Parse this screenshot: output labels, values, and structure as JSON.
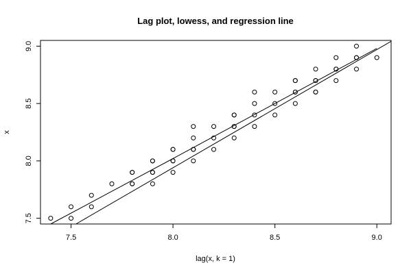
{
  "chart_data": {
    "type": "scatter",
    "title": "Lag plot, lowess, and regression line",
    "xlabel": "lag(x, k = 1)",
    "ylabel": "x",
    "xlim": [
      7.35,
      9.07
    ],
    "ylim": [
      7.45,
      9.05
    ],
    "x_ticks": [
      "7.5",
      "8.0",
      "8.5",
      "9.0"
    ],
    "y_ticks": [
      "7.5",
      "8.0",
      "8.5",
      "9.0"
    ],
    "grid": false,
    "colors": {
      "points": "#000000",
      "lines": "#000000",
      "frame": "#000000"
    },
    "points": [
      [
        7.4,
        7.5
      ],
      [
        7.5,
        7.5
      ],
      [
        7.5,
        7.6
      ],
      [
        7.6,
        7.6
      ],
      [
        7.6,
        7.7
      ],
      [
        7.7,
        7.8
      ],
      [
        7.8,
        7.8
      ],
      [
        7.8,
        7.8
      ],
      [
        7.8,
        7.9
      ],
      [
        7.8,
        7.9
      ],
      [
        7.9,
        7.8
      ],
      [
        7.9,
        7.9
      ],
      [
        7.9,
        7.9
      ],
      [
        7.9,
        8.0
      ],
      [
        7.9,
        8.0
      ],
      [
        8.0,
        7.9
      ],
      [
        8.0,
        8.0
      ],
      [
        8.0,
        8.0
      ],
      [
        8.0,
        8.1
      ],
      [
        8.0,
        8.1
      ],
      [
        8.1,
        8.0
      ],
      [
        8.1,
        8.1
      ],
      [
        8.1,
        8.1
      ],
      [
        8.1,
        8.2
      ],
      [
        8.1,
        8.3
      ],
      [
        8.2,
        8.1
      ],
      [
        8.2,
        8.2
      ],
      [
        8.2,
        8.3
      ],
      [
        8.3,
        8.2
      ],
      [
        8.3,
        8.3
      ],
      [
        8.3,
        8.3
      ],
      [
        8.3,
        8.4
      ],
      [
        8.3,
        8.4
      ],
      [
        8.4,
        8.3
      ],
      [
        8.4,
        8.4
      ],
      [
        8.4,
        8.5
      ],
      [
        8.4,
        8.6
      ],
      [
        8.5,
        8.4
      ],
      [
        8.5,
        8.5
      ],
      [
        8.5,
        8.6
      ],
      [
        8.6,
        8.5
      ],
      [
        8.6,
        8.6
      ],
      [
        8.6,
        8.6
      ],
      [
        8.6,
        8.7
      ],
      [
        8.6,
        8.7
      ],
      [
        8.7,
        8.6
      ],
      [
        8.7,
        8.6
      ],
      [
        8.7,
        8.7
      ],
      [
        8.7,
        8.7
      ],
      [
        8.7,
        8.8
      ],
      [
        8.8,
        8.7
      ],
      [
        8.8,
        8.8
      ],
      [
        8.8,
        8.8
      ],
      [
        8.8,
        8.9
      ],
      [
        8.9,
        8.8
      ],
      [
        8.9,
        8.9
      ],
      [
        8.9,
        8.9
      ],
      [
        8.9,
        9.0
      ],
      [
        9.0,
        8.9
      ]
    ],
    "regression_line": {
      "slope": 1.03,
      "intercept": -0.3
    },
    "lowess": [
      [
        7.4,
        7.45
      ],
      [
        8.0,
        8.02
      ],
      [
        8.5,
        8.5
      ],
      [
        9.0,
        8.98
      ]
    ]
  }
}
